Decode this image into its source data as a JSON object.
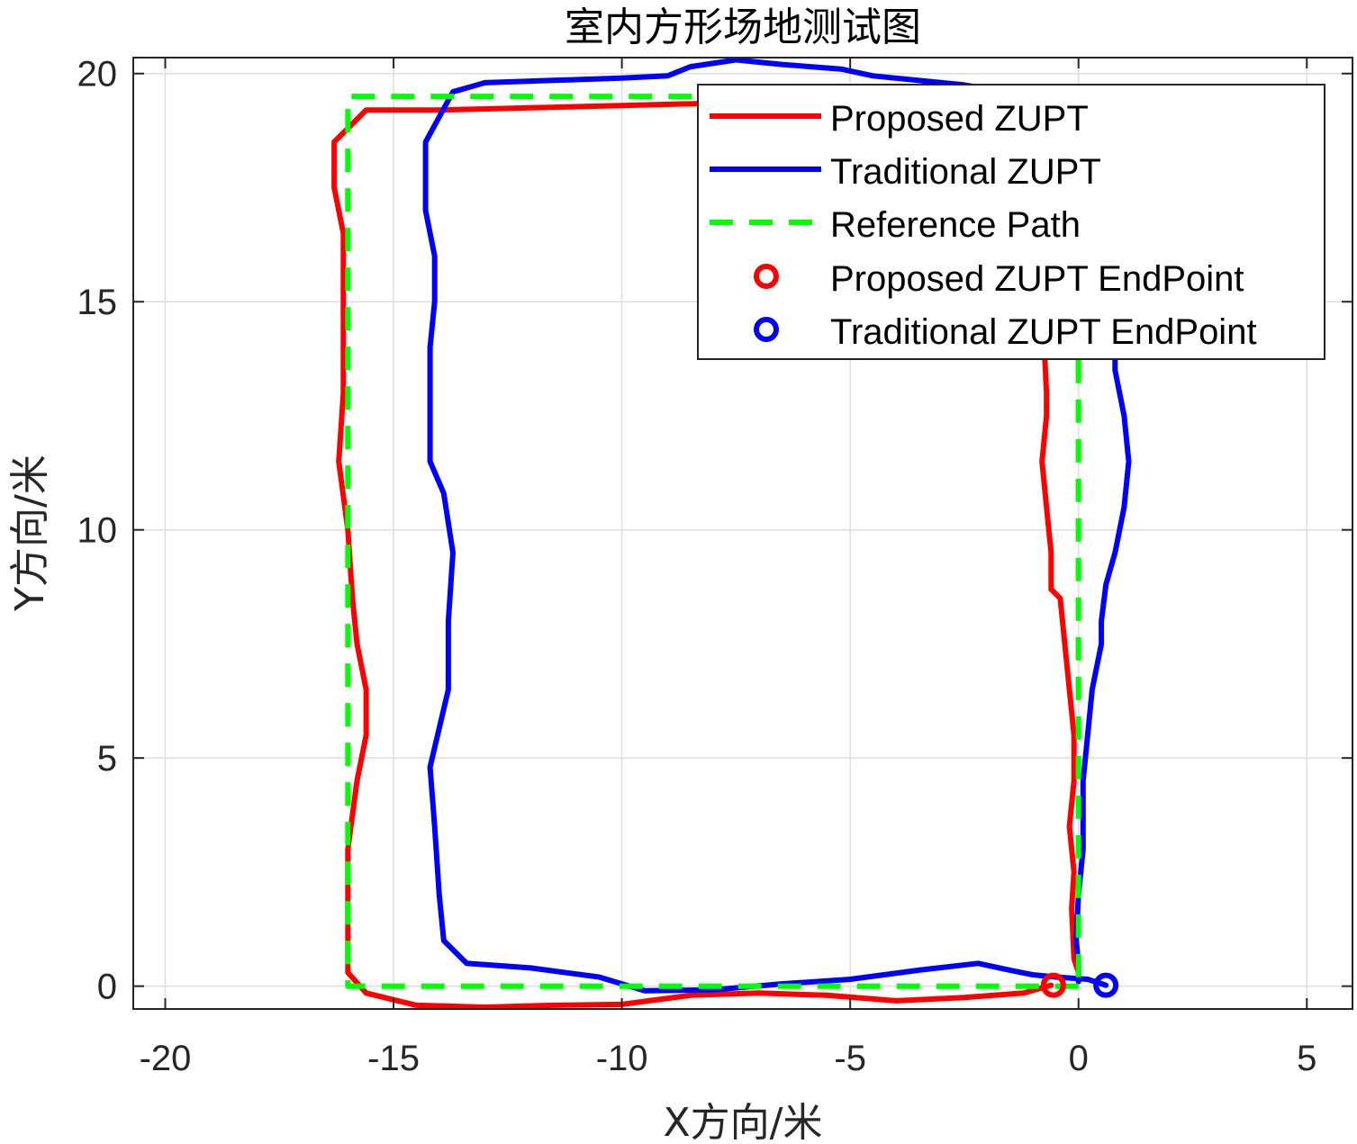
{
  "chart_data": {
    "type": "line",
    "title": "室内方形场地测试图",
    "xlabel": "X方向/米",
    "ylabel": "Y方向/米",
    "xlim": [
      -20.7,
      6
    ],
    "ylim": [
      -0.5,
      20.35
    ],
    "xticks": [
      -20,
      -15,
      -10,
      -5,
      0,
      5
    ],
    "yticks": [
      0,
      5,
      10,
      15,
      20
    ],
    "xtick_labels": [
      "-20",
      "-15",
      "-10",
      "-5",
      "0",
      "5"
    ],
    "ytick_labels": [
      "0",
      "5",
      "10",
      "15",
      "20"
    ],
    "grid": true,
    "legend_position": "top-right",
    "series": [
      {
        "name": "Proposed ZUPT",
        "color": "#ff0000",
        "style": "solid",
        "points": [
          [
            -0.6,
            0.02
          ],
          [
            -1.2,
            -0.15
          ],
          [
            -2.5,
            -0.25
          ],
          [
            -4.0,
            -0.32
          ],
          [
            -5.5,
            -0.2
          ],
          [
            -7.0,
            -0.15
          ],
          [
            -8.5,
            -0.2
          ],
          [
            -10.0,
            -0.4
          ],
          [
            -11.5,
            -0.42
          ],
          [
            -13.0,
            -0.46
          ],
          [
            -14.5,
            -0.42
          ],
          [
            -15.6,
            -0.15
          ],
          [
            -16.0,
            0.3
          ],
          [
            -16.0,
            1.5
          ],
          [
            -16.0,
            3.0
          ],
          [
            -15.8,
            4.5
          ],
          [
            -15.6,
            5.5
          ],
          [
            -15.6,
            6.5
          ],
          [
            -15.8,
            7.5
          ],
          [
            -15.9,
            8.5
          ],
          [
            -16.0,
            10.0
          ],
          [
            -16.2,
            11.5
          ],
          [
            -16.1,
            13.0
          ],
          [
            -16.1,
            14.0
          ],
          [
            -16.1,
            15.5
          ],
          [
            -16.1,
            16.5
          ],
          [
            -16.3,
            17.5
          ],
          [
            -16.3,
            18.5
          ],
          [
            -15.6,
            19.2
          ],
          [
            -14.0,
            19.2
          ],
          [
            -12.0,
            19.25
          ],
          [
            -10.0,
            19.3
          ],
          [
            -8.0,
            19.35
          ],
          [
            -6.5,
            19.45
          ],
          [
            -5.2,
            19.55
          ],
          [
            -4.0,
            19.5
          ],
          [
            -2.5,
            19.45
          ],
          [
            -1.5,
            19.3
          ],
          [
            -0.5,
            18.5
          ],
          [
            -0.8,
            17.0
          ],
          [
            -0.8,
            15.0
          ],
          [
            -0.7,
            13.0
          ],
          [
            -0.7,
            12.5
          ],
          [
            -0.8,
            11.5
          ],
          [
            -0.7,
            10.5
          ],
          [
            -0.6,
            9.5
          ],
          [
            -0.6,
            8.7
          ],
          [
            -0.4,
            8.5
          ],
          [
            -0.3,
            7.5
          ],
          [
            -0.2,
            6.5
          ],
          [
            -0.1,
            5.5
          ],
          [
            -0.1,
            4.5
          ],
          [
            -0.2,
            3.5
          ],
          [
            -0.1,
            2.5
          ],
          [
            -0.15,
            1.7
          ],
          [
            -0.1,
            0.6
          ],
          [
            0.0,
            0.3
          ]
        ]
      },
      {
        "name": "Traditional ZUPT",
        "color": "#0000ff",
        "style": "solid",
        "points": [
          [
            0.6,
            0.02
          ],
          [
            0.2,
            0.15
          ],
          [
            -0.5,
            0.2
          ],
          [
            -1.0,
            0.25
          ],
          [
            -1.5,
            0.35
          ],
          [
            -2.2,
            0.5
          ],
          [
            -3.5,
            0.35
          ],
          [
            -5.0,
            0.15
          ],
          [
            -6.5,
            0.05
          ],
          [
            -8.0,
            -0.08
          ],
          [
            -9.5,
            -0.1
          ],
          [
            -10.5,
            0.2
          ],
          [
            -12.0,
            0.4
          ],
          [
            -13.4,
            0.5
          ],
          [
            -13.9,
            1.0
          ],
          [
            -14.0,
            2.0
          ],
          [
            -14.1,
            3.5
          ],
          [
            -14.2,
            4.8
          ],
          [
            -13.8,
            6.5
          ],
          [
            -13.8,
            8.0
          ],
          [
            -13.7,
            9.5
          ],
          [
            -13.9,
            10.8
          ],
          [
            -14.2,
            11.5
          ],
          [
            -14.2,
            12.5
          ],
          [
            -14.2,
            14.0
          ],
          [
            -14.1,
            15.0
          ],
          [
            -14.1,
            16.0
          ],
          [
            -14.3,
            17.0
          ],
          [
            -14.3,
            18.5
          ],
          [
            -13.7,
            19.6
          ],
          [
            -13.0,
            19.8
          ],
          [
            -11.5,
            19.85
          ],
          [
            -10.0,
            19.9
          ],
          [
            -9.0,
            19.95
          ],
          [
            -8.5,
            20.15
          ],
          [
            -7.5,
            20.3
          ],
          [
            -6.5,
            20.2
          ],
          [
            -5.2,
            20.1
          ],
          [
            -4.5,
            19.95
          ],
          [
            -2.5,
            19.75
          ],
          [
            -1.0,
            19.5
          ],
          [
            0.3,
            18.5
          ],
          [
            0.8,
            16.0
          ],
          [
            0.8,
            13.5
          ],
          [
            1.0,
            12.5
          ],
          [
            1.1,
            11.5
          ],
          [
            1.0,
            10.5
          ],
          [
            0.8,
            9.5
          ],
          [
            0.6,
            8.8
          ],
          [
            0.5,
            8.0
          ],
          [
            0.5,
            7.5
          ],
          [
            0.3,
            6.5
          ],
          [
            0.2,
            5.5
          ],
          [
            0.1,
            4.5
          ],
          [
            0.1,
            3.0
          ],
          [
            0.0,
            2.0
          ],
          [
            -0.05,
            1.0
          ],
          [
            0.0,
            0.5
          ],
          [
            0.0,
            0.1
          ]
        ]
      },
      {
        "name": "Reference Path",
        "color": "#00ff00",
        "style": "dashed",
        "points": [
          [
            0,
            0
          ],
          [
            -16,
            0
          ],
          [
            -16,
            19.5
          ],
          [
            0,
            19.5
          ],
          [
            0,
            0
          ]
        ]
      },
      {
        "name": "Proposed ZUPT EndPoint",
        "color": "#ff0000",
        "style": "marker",
        "points": [
          [
            -0.55,
            0.02
          ]
        ]
      },
      {
        "name": "Traditional ZUPT EndPoint",
        "color": "#0000ff",
        "style": "marker",
        "points": [
          [
            0.6,
            0.02
          ]
        ]
      }
    ]
  }
}
